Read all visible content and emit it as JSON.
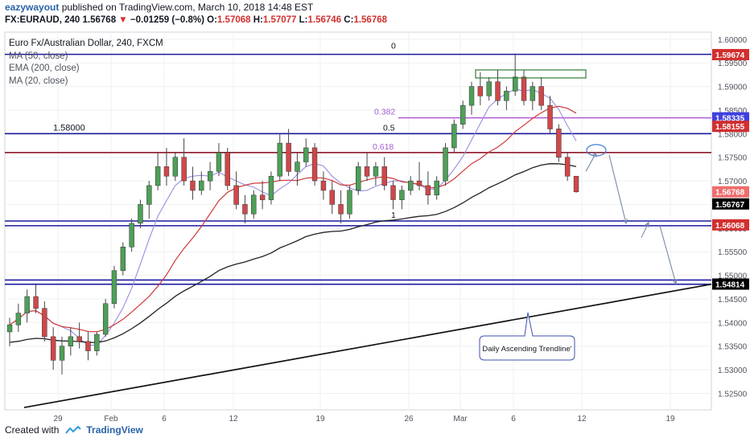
{
  "header": {
    "user": "eazywayout",
    "published_text": "published on TradingView.com, March 10, 2018 14:48 EST",
    "symbol": "FX:EURAUD, 240",
    "last": "1.56768",
    "change_arrow": "▼",
    "change": "−0.01259 (−0.8%)",
    "o_label": "O:",
    "o": "1.57068",
    "h_label": "H:",
    "h": "1.57077",
    "l_label": "L:",
    "l": "1.56746",
    "c_label": "C:",
    "c": "1.56768"
  },
  "legend": {
    "title": "Euro Fx/Australian Dollar, 240, FXCM",
    "items": [
      "MA (50, close)",
      "EMA (200, close)",
      "MA (20, close)"
    ]
  },
  "footer": {
    "created_with": "Created with",
    "brand": "TradingView"
  },
  "chart_data": {
    "type": "candlestick",
    "title": "Euro Fx/Australian Dollar, 240, FXCM",
    "x_ticks": [
      "29",
      "Feb",
      "6",
      "12",
      "19",
      "26",
      "Mar",
      "6",
      "12",
      "19"
    ],
    "y_ticks": [
      "1.60000",
      "1.59500",
      "1.59000",
      "1.58500",
      "1.58000",
      "1.57500",
      "1.57000",
      "1.56500",
      "1.56000",
      "1.55500",
      "1.55000",
      "1.54500",
      "1.54000",
      "1.53500",
      "1.53000",
      "1.52500"
    ],
    "ylim": [
      1.5215,
      1.6015
    ],
    "price_tags": [
      {
        "value": 1.59674,
        "label": "1.59674",
        "color": "#d32f2f"
      },
      {
        "value": 1.58335,
        "label": "1.58335",
        "color": "#3f3fe0"
      },
      {
        "value": 1.58155,
        "label": "1.58155",
        "color": "#d32f2f"
      },
      {
        "value": 1.56768,
        "label": "1.56768",
        "color": "#ef6c6c"
      },
      {
        "value": 1.56767,
        "label": "1.56767",
        "color": "#000000"
      },
      {
        "value": 1.56068,
        "label": "1.56068",
        "color": "#d32f2f"
      },
      {
        "value": 1.54814,
        "label": "1.54814",
        "color": "#000000"
      }
    ],
    "horizontal_levels": [
      1.5968,
      1.58,
      1.576,
      1.5615,
      1.5605,
      1.549,
      1.5481
    ],
    "fib_levels": [
      {
        "label": "0",
        "value": 1.5973
      },
      {
        "label": "0.382",
        "value": 1.58335
      },
      {
        "label": "0.5",
        "value": 1.58
      },
      {
        "label": "0.618",
        "value": 1.576
      },
      {
        "label": "1",
        "value": 1.5615
      }
    ],
    "level_label": "1.58000",
    "annotation": "Daily Ascending Trendline'",
    "trendline": {
      "from_value": 1.522,
      "to_value": 1.5481
    },
    "candles_ohlc": [
      [
        1.538,
        1.541,
        1.535,
        1.5395
      ],
      [
        1.5395,
        1.544,
        1.538,
        1.542
      ],
      [
        1.542,
        1.547,
        1.54,
        1.5455
      ],
      [
        1.5455,
        1.548,
        1.542,
        1.543
      ],
      [
        1.543,
        1.5445,
        1.536,
        1.537
      ],
      [
        1.537,
        1.539,
        1.53,
        1.532
      ],
      [
        1.532,
        1.537,
        1.529,
        1.535
      ],
      [
        1.535,
        1.539,
        1.533,
        1.537
      ],
      [
        1.537,
        1.54,
        1.5345,
        1.536
      ],
      [
        1.536,
        1.538,
        1.532,
        1.534
      ],
      [
        1.534,
        1.538,
        1.533,
        1.5375
      ],
      [
        1.5375,
        1.545,
        1.537,
        1.544
      ],
      [
        1.544,
        1.552,
        1.543,
        1.551
      ],
      [
        1.551,
        1.557,
        1.55,
        1.556
      ],
      [
        1.556,
        1.562,
        1.555,
        1.561
      ],
      [
        1.561,
        1.566,
        1.56,
        1.565
      ],
      [
        1.565,
        1.57,
        1.562,
        1.569
      ],
      [
        1.569,
        1.576,
        1.568,
        1.573
      ],
      [
        1.573,
        1.577,
        1.569,
        1.571
      ],
      [
        1.571,
        1.576,
        1.57,
        1.575
      ],
      [
        1.575,
        1.579,
        1.569,
        1.57
      ],
      [
        1.57,
        1.573,
        1.566,
        1.568
      ],
      [
        1.568,
        1.572,
        1.567,
        1.57
      ],
      [
        1.57,
        1.574,
        1.568,
        1.572
      ],
      [
        1.572,
        1.578,
        1.571,
        1.576
      ],
      [
        1.576,
        1.577,
        1.568,
        1.569
      ],
      [
        1.569,
        1.572,
        1.564,
        1.565
      ],
      [
        1.565,
        1.567,
        1.561,
        1.563
      ],
      [
        1.563,
        1.568,
        1.562,
        1.567
      ],
      [
        1.567,
        1.57,
        1.564,
        1.566
      ],
      [
        1.566,
        1.572,
        1.565,
        1.571
      ],
      [
        1.571,
        1.58,
        1.57,
        1.578
      ],
      [
        1.578,
        1.581,
        1.571,
        1.572
      ],
      [
        1.572,
        1.576,
        1.569,
        1.574
      ],
      [
        1.574,
        1.579,
        1.573,
        1.577
      ],
      [
        1.577,
        1.578,
        1.569,
        1.57
      ],
      [
        1.57,
        1.572,
        1.566,
        1.568
      ],
      [
        1.568,
        1.57,
        1.563,
        1.565
      ],
      [
        1.565,
        1.568,
        1.561,
        1.563
      ],
      [
        1.563,
        1.569,
        1.562,
        1.568
      ],
      [
        1.568,
        1.574,
        1.567,
        1.573
      ],
      [
        1.573,
        1.576,
        1.57,
        1.571
      ],
      [
        1.571,
        1.574,
        1.569,
        1.573
      ],
      [
        1.573,
        1.575,
        1.568,
        1.569
      ],
      [
        1.569,
        1.57,
        1.564,
        1.566
      ],
      [
        1.566,
        1.569,
        1.564,
        1.568
      ],
      [
        1.568,
        1.571,
        1.567,
        1.57
      ],
      [
        1.57,
        1.574,
        1.568,
        1.569
      ],
      [
        1.569,
        1.572,
        1.565,
        1.567
      ],
      [
        1.567,
        1.571,
        1.566,
        1.57
      ],
      [
        1.57,
        1.578,
        1.569,
        1.577
      ],
      [
        1.577,
        1.583,
        1.576,
        1.582
      ],
      [
        1.582,
        1.587,
        1.581,
        1.586
      ],
      [
        1.586,
        1.591,
        1.584,
        1.59
      ],
      [
        1.59,
        1.593,
        1.586,
        1.588
      ],
      [
        1.588,
        1.592,
        1.587,
        1.591
      ],
      [
        1.591,
        1.5935,
        1.586,
        1.587
      ],
      [
        1.587,
        1.59,
        1.585,
        1.589
      ],
      [
        1.589,
        1.597,
        1.588,
        1.592
      ],
      [
        1.592,
        1.5935,
        1.586,
        1.587
      ],
      [
        1.587,
        1.591,
        1.585,
        1.59
      ],
      [
        1.59,
        1.592,
        1.585,
        1.586
      ],
      [
        1.586,
        1.588,
        1.58,
        1.581
      ],
      [
        1.581,
        1.582,
        1.574,
        1.575
      ],
      [
        1.575,
        1.576,
        1.57,
        1.571
      ],
      [
        1.571,
        1.571,
        1.5675,
        1.56768
      ]
    ]
  }
}
